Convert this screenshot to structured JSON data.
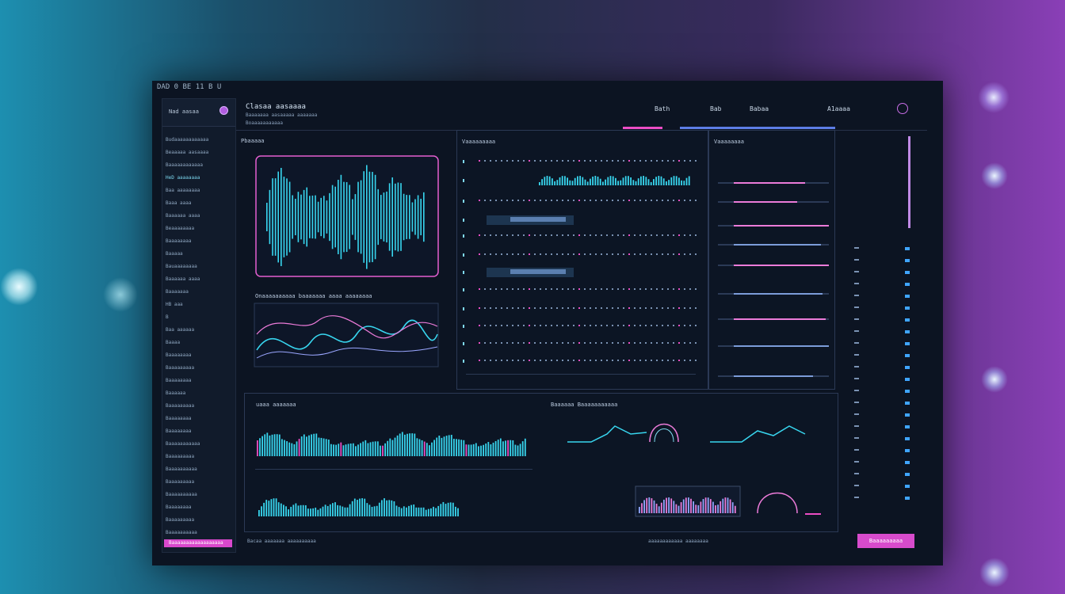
{
  "window": {
    "title": "DAD 0 BE 11 B U"
  },
  "sidebar": {
    "header": "Nad aasaa",
    "items": [
      {
        "label": "Budaaaaaaaaaaaa",
        "cyan": false
      },
      {
        "label": "Beaaaaa aasaaaa",
        "cyan": false
      },
      {
        "label": "Baaaaaaaaaaaa",
        "cyan": false
      },
      {
        "label": "HeD aaaaaaaa",
        "cyan": true
      },
      {
        "label": "Baa aaaaaaaa",
        "cyan": false
      },
      {
        "label": "Baaa aaaa",
        "cyan": false
      },
      {
        "label": "Baaaaaa aaaa",
        "cyan": false
      },
      {
        "label": "Beaaaaaaaa",
        "cyan": false
      },
      {
        "label": "Baaaaaaaa",
        "cyan": false
      },
      {
        "label": "Baaaaa",
        "cyan": false
      },
      {
        "label": "Bauaaaaaaaa",
        "cyan": false
      },
      {
        "label": "Baaaaaa aaaa",
        "cyan": false
      },
      {
        "label": "Baaaaaaa",
        "cyan": false
      },
      {
        "label": "HB aaa",
        "cyan": false
      },
      {
        "label": "B",
        "cyan": false
      },
      {
        "label": "Baa aaaaaa",
        "cyan": false
      },
      {
        "label": "Baaaa",
        "cyan": false
      },
      {
        "label": "Baaaaaaaa",
        "cyan": false
      },
      {
        "label": "Baaaaaaaaa",
        "cyan": false
      },
      {
        "label": "Baaaaaaaa",
        "cyan": false
      },
      {
        "label": "Baaaaaa",
        "cyan": false
      },
      {
        "label": "Baaaaaaaaa",
        "cyan": false
      },
      {
        "label": "Baaaaaaaa",
        "cyan": false
      },
      {
        "label": "Baaaaaaaa",
        "cyan": false
      },
      {
        "label": "Baaaaaaaaaaa",
        "cyan": false
      },
      {
        "label": "Baaaaaaaaa",
        "cyan": false
      },
      {
        "label": "Baaaaaaaaaa",
        "cyan": false
      },
      {
        "label": "Baaaaaaaaa",
        "cyan": false
      },
      {
        "label": "Baaaaaaaaaa",
        "cyan": false
      },
      {
        "label": "Baaaaaaaa",
        "cyan": false
      },
      {
        "label": "Baaaaaaaaa",
        "cyan": false
      },
      {
        "label": "Baaaaaaaaaa",
        "cyan": false
      }
    ],
    "footer_button": "Baaaaaaaaaaaaaaaaaa",
    "bottom_caption": "Pauaaa aaaaaaaaaaa"
  },
  "topbar": {
    "title": "Clasaa aasaaaa",
    "subtitle": "Baaaaaaa aasaaaaa aaaaaaa",
    "subtitle2": "Boaaaaaaaaaaa",
    "items": [
      "Bath",
      "Bab",
      "Babaa"
    ],
    "right_label": "A1aaaa"
  },
  "panels": {
    "waveform_title": "Pbaaaaa",
    "curve_title": "Onaaaaaaaaaa baaaaaaa aaaa aaaaaaaa",
    "center_title": "Vaaaaaaaaa",
    "right_title": "Vaaaaaaaa",
    "bottom_left_title": "uaaa aaaaaaa",
    "bottom_right_title": "Baaaaaa Baaaaaaaaaaa",
    "bottom_caption": "Bacaa aaaaaaa aaaaaaaaaa",
    "right_bottom_button": "Baaaaaaaaa",
    "right_bottom_caption": "aaaaaaaaaaaa aaaaaaaa"
  },
  "colors": {
    "accent_pink": "#ec4dc4",
    "accent_cyan": "#38d6ef",
    "accent_blue": "#5d7de6",
    "panel_bg": "#0c1422"
  }
}
